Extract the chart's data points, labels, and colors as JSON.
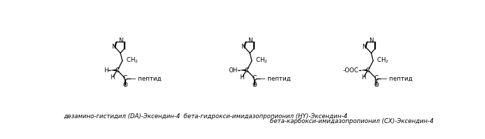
{
  "bg_color": "#ffffff",
  "line_color": "#000000",
  "text_color": "#000000",
  "label1": "дезамино-гистидил (DA)-Эксендин-4",
  "label2": "бета-гидрокси-имидазопропионил (HY)-Эксендин-4",
  "label3": "бета-карбокси-имидазопропионил (CX)-Эксендин-4",
  "label_fontsize": 6.2,
  "structures": [
    {
      "left_group": "H",
      "ox": 1.1,
      "oy": 1.0
    },
    {
      "left_group": "OH",
      "ox": 3.55,
      "oy": 1.0
    },
    {
      "left_group": "-OOC",
      "ox": 5.85,
      "oy": 1.0
    }
  ]
}
